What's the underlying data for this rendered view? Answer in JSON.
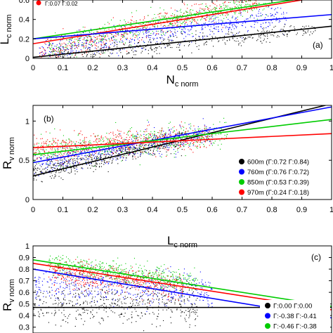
{
  "chart_data": [
    {
      "id": "panel-a",
      "type": "scatter",
      "panel_label": "(a)",
      "xlabel": "N",
      "xlabel_sub": "c norm",
      "ylabel": "L",
      "ylabel_sub": "c norm",
      "xlim": [
        0,
        1
      ],
      "ylim": [
        0,
        0.6
      ],
      "xticks": [
        "0",
        "0.1",
        "0.2",
        "0.3",
        "0.4",
        "0.5",
        "0.6",
        "0.7",
        "0.8",
        "0.9",
        "1"
      ],
      "yticks": [
        "0",
        "0.2",
        "0.4",
        "0.6"
      ],
      "legend_text": "Γ:0.07 Γ:0.02",
      "series": [
        {
          "color": "#ff0000",
          "x_range": [
            0.02,
            0.75
          ],
          "y_center": [
            0.05,
            0.62
          ],
          "spread": 0.1,
          "n": 520,
          "fit": [
            [
              0,
              0.15
            ],
            [
              1,
              0.65
            ]
          ]
        },
        {
          "color": "#00cc00",
          "x_range": [
            0.05,
            0.8
          ],
          "y_center": [
            0.12,
            0.6
          ],
          "spread": 0.1,
          "n": 520,
          "fit": [
            [
              0,
              0.2
            ],
            [
              1,
              0.66
            ]
          ]
        },
        {
          "color": "#0000ff",
          "x_range": [
            0.02,
            0.85
          ],
          "y_center": [
            0.08,
            0.45
          ],
          "spread": 0.11,
          "n": 520,
          "fit": [
            [
              0,
              0.2
            ],
            [
              1,
              0.45
            ]
          ]
        },
        {
          "color": "#000000",
          "x_range": [
            0.05,
            0.95
          ],
          "y_center": [
            0.02,
            0.3
          ],
          "spread": 0.07,
          "n": 420,
          "fit": [
            [
              0,
              0.01
            ],
            [
              1,
              0.33
            ]
          ]
        }
      ]
    },
    {
      "id": "panel-b",
      "type": "scatter",
      "panel_label": "(b)",
      "xlabel": "L",
      "xlabel_sub": "c norm",
      "ylabel": "R",
      "ylabel_sub": "v norm",
      "xlim": [
        0,
        1
      ],
      "ylim": [
        0,
        1.2
      ],
      "xticks": [
        "0",
        "0.1",
        "0.2",
        "0.3",
        "0.4",
        "0.5",
        "0.6",
        "0.7",
        "0.8",
        "0.9",
        "1"
      ],
      "yticks": [
        "0",
        "0.5",
        "1"
      ],
      "series": [
        {
          "name": "600m (Γ:0.72 Γ:0.84)",
          "color": "#000000",
          "x_range": [
            0.0,
            0.5
          ],
          "y_center": [
            0.33,
            0.78
          ],
          "spread": 0.1,
          "n": 520,
          "fit": [
            [
              0,
              0.3
            ],
            [
              1,
              1.22
            ]
          ]
        },
        {
          "name": "760m (Γ:0.76 Γ:0.72)",
          "color": "#0000ff",
          "x_range": [
            0.0,
            0.6
          ],
          "y_center": [
            0.45,
            0.85
          ],
          "spread": 0.13,
          "n": 520,
          "fit": [
            [
              0,
              0.47
            ],
            [
              1,
              1.18
            ]
          ]
        },
        {
          "name": "850m (Γ:0.53 Γ:0.39)",
          "color": "#00cc00",
          "x_range": [
            0.0,
            0.65
          ],
          "y_center": [
            0.6,
            0.85
          ],
          "spread": 0.14,
          "n": 520,
          "fit": [
            [
              0,
              0.57
            ],
            [
              1,
              1.02
            ]
          ]
        },
        {
          "name": "970m (Γ:0.24 Γ:0.18)",
          "color": "#ff0000",
          "x_range": [
            0.0,
            0.6
          ],
          "y_center": [
            0.65,
            0.8
          ],
          "spread": 0.14,
          "n": 520,
          "fit": [
            [
              0,
              0.66
            ],
            [
              1,
              0.84
            ]
          ]
        }
      ]
    },
    {
      "id": "panel-c",
      "type": "scatter",
      "panel_label": "(c)",
      "xlabel": "",
      "ylabel": "R",
      "ylabel_sub": "v norm",
      "xlim": [
        0,
        1
      ],
      "ylim": [
        0.25,
        1.0
      ],
      "yticks": [
        "0.3",
        "0.4",
        "0.5",
        "0.6",
        "0.7",
        "0.8",
        "0.9",
        "1"
      ],
      "series": [
        {
          "name": "Γ:0.00 Γ:0.00",
          "color": "#000000",
          "x_range": [
            0.0,
            0.55
          ],
          "y_center": [
            0.5,
            0.5
          ],
          "spread": 0.14,
          "n": 480,
          "fit": [
            [
              0,
              0.47
            ],
            [
              1,
              0.47
            ]
          ]
        },
        {
          "name": "Γ:-0.38 Γ:-0.41",
          "color": "#0000ff",
          "x_range": [
            0.0,
            0.6
          ],
          "y_center": [
            0.68,
            0.62
          ],
          "spread": 0.12,
          "n": 480,
          "fit": [
            [
              0,
              0.8
            ],
            [
              1,
              0.38
            ]
          ]
        },
        {
          "name": "Γ:-0.46 Γ:-0.38",
          "color": "#00cc00",
          "x_range": [
            0.05,
            0.55
          ],
          "y_center": [
            0.85,
            0.68
          ],
          "spread": 0.08,
          "n": 520,
          "fit": [
            [
              0,
              0.88
            ],
            [
              1,
              0.48
            ]
          ]
        },
        {
          "color": "#ff0000",
          "x_range": [
            0.05,
            0.5
          ],
          "y_center": [
            0.78,
            0.65
          ],
          "spread": 0.09,
          "n": 520,
          "fit": [
            [
              0,
              0.85
            ],
            [
              1,
              0.45
            ]
          ]
        }
      ]
    }
  ]
}
